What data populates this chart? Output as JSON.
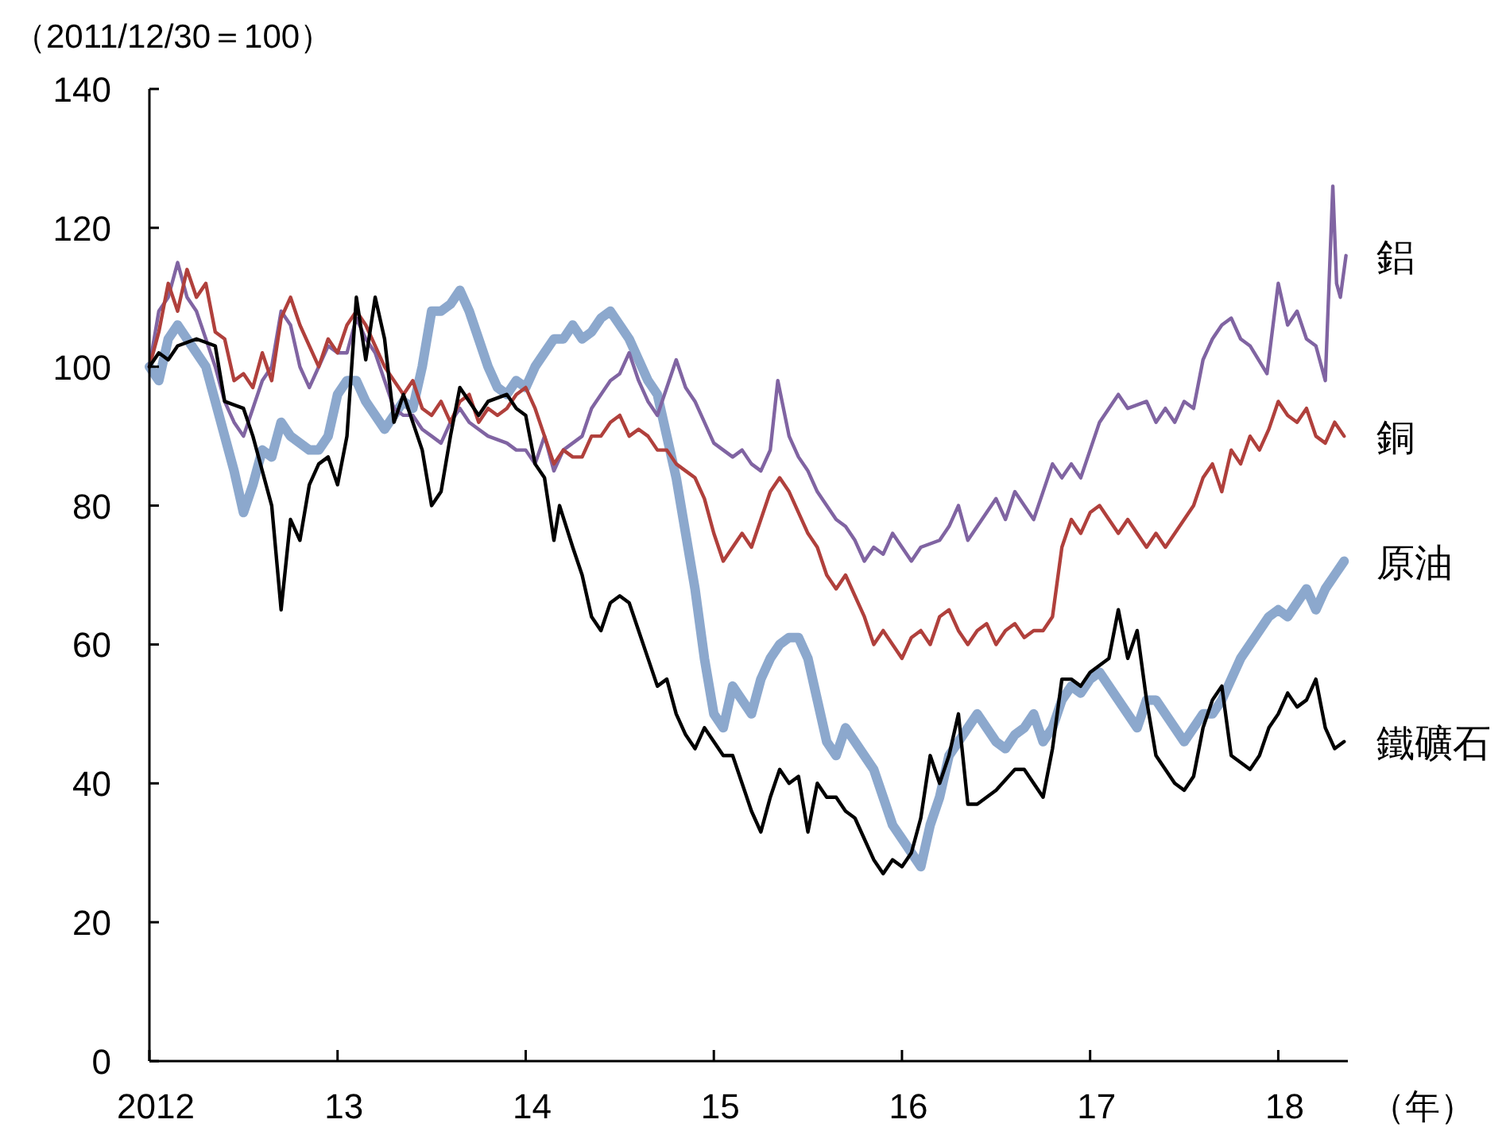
{
  "chart_data": {
    "type": "line",
    "ylabel": "（2011/12/30＝100）",
    "xlabel": "（年）",
    "xlim": [
      2012,
      2018.37
    ],
    "ylim": [
      0,
      140
    ],
    "xticks": [
      {
        "value": 2012,
        "label": "2012"
      },
      {
        "value": 2013,
        "label": "13"
      },
      {
        "value": 2014,
        "label": "14"
      },
      {
        "value": 2015,
        "label": "15"
      },
      {
        "value": 2016,
        "label": "16"
      },
      {
        "value": 2017,
        "label": "17"
      },
      {
        "value": 2018,
        "label": "18"
      }
    ],
    "yticks": [
      0,
      20,
      40,
      60,
      80,
      100,
      120,
      140
    ],
    "grid": false,
    "marker": "none",
    "line_style": "solid",
    "x": [
      2012,
      2012.05,
      2012.1,
      2012.15,
      2012.2,
      2012.25,
      2012.3,
      2012.35,
      2012.4,
      2012.45,
      2012.5,
      2012.55,
      2012.6,
      2012.65,
      2012.7,
      2012.75,
      2012.8,
      2012.85,
      2012.9,
      2012.95,
      2013,
      2013.05,
      2013.1,
      2013.15,
      2013.2,
      2013.25,
      2013.3,
      2013.35,
      2013.4,
      2013.45,
      2013.5,
      2013.55,
      2013.6,
      2013.65,
      2013.7,
      2013.75,
      2013.8,
      2013.85,
      2013.9,
      2013.95,
      2014,
      2014.05,
      2014.1,
      2014.15,
      2014.2,
      2014.25,
      2014.3,
      2014.35,
      2014.4,
      2014.45,
      2014.5,
      2014.55,
      2014.6,
      2014.65,
      2014.7,
      2014.75,
      2014.8,
      2014.85,
      2014.9,
      2014.95,
      2015,
      2015.05,
      2015.1,
      2015.15,
      2015.2,
      2015.25,
      2015.3,
      2015.35,
      2015.4,
      2015.45,
      2015.5,
      2015.55,
      2015.6,
      2015.65,
      2015.7,
      2015.75,
      2015.8,
      2015.85,
      2015.9,
      2015.95,
      2016,
      2016.05,
      2016.1,
      2016.15,
      2016.2,
      2016.25,
      2016.3,
      2016.35,
      2016.4,
      2016.45,
      2016.5,
      2016.55,
      2016.6,
      2016.65,
      2016.7,
      2016.75,
      2016.8,
      2016.85,
      2016.9,
      2016.95,
      2017,
      2017.05,
      2017.1,
      2017.15,
      2017.2,
      2017.25,
      2017.3,
      2017.35,
      2017.4,
      2017.45,
      2017.5,
      2017.55,
      2017.6,
      2017.65,
      2017.7,
      2017.75,
      2017.8,
      2017.85,
      2017.9,
      2017.95,
      2018,
      2018.05,
      2018.1,
      2018.15,
      2018.2,
      2018.25,
      2018.3,
      2018.35
    ],
    "series": [
      {
        "name": "鋁",
        "color": "#8064a2",
        "x": [
          2012,
          2012.05,
          2012.1,
          2012.15,
          2012.2,
          2012.25,
          2012.3,
          2012.35,
          2012.4,
          2012.45,
          2012.5,
          2012.55,
          2012.6,
          2012.65,
          2012.7,
          2012.75,
          2012.8,
          2012.85,
          2012.9,
          2012.95,
          2013,
          2013.05,
          2013.1,
          2013.15,
          2013.2,
          2013.25,
          2013.3,
          2013.35,
          2013.4,
          2013.45,
          2013.5,
          2013.55,
          2013.6,
          2013.65,
          2013.7,
          2013.75,
          2013.8,
          2013.9,
          2013.95,
          2014,
          2014.05,
          2014.1,
          2014.15,
          2014.2,
          2014.3,
          2014.35,
          2014.4,
          2014.45,
          2014.5,
          2014.55,
          2014.6,
          2014.65,
          2014.7,
          2014.75,
          2014.8,
          2014.85,
          2014.9,
          2014.95,
          2015,
          2015.05,
          2015.1,
          2015.15,
          2015.2,
          2015.25,
          2015.3,
          2015.34,
          2015.4,
          2015.45,
          2015.5,
          2015.55,
          2015.6,
          2015.65,
          2015.7,
          2015.75,
          2015.8,
          2015.85,
          2015.9,
          2015.95,
          2016,
          2016.05,
          2016.1,
          2016.2,
          2016.25,
          2016.3,
          2016.35,
          2016.4,
          2016.45,
          2016.5,
          2016.55,
          2016.6,
          2016.7,
          2016.75,
          2016.8,
          2016.85,
          2016.9,
          2016.95,
          2017,
          2017.05,
          2017.1,
          2017.15,
          2017.2,
          2017.3,
          2017.35,
          2017.4,
          2017.45,
          2017.5,
          2017.55,
          2017.6,
          2017.65,
          2017.7,
          2017.75,
          2017.8,
          2017.85,
          2017.94,
          2018,
          2018.05,
          2018.1,
          2018.15,
          2018.2,
          2018.25,
          2018.29,
          2018.31,
          2018.33,
          2018.36
        ],
        "values": [
          100,
          108,
          110,
          115,
          110,
          108,
          104,
          100,
          95,
          92,
          90,
          94,
          98,
          100,
          108,
          106,
          100,
          97,
          100,
          103,
          102,
          102,
          107,
          104,
          102,
          98,
          94,
          93,
          93,
          91,
          90,
          89,
          92,
          94,
          92,
          91,
          90,
          89,
          88,
          88,
          86,
          90,
          85,
          88,
          90,
          94,
          96,
          98,
          99,
          102,
          98,
          95,
          93,
          97,
          101,
          97,
          95,
          92,
          89,
          88,
          87,
          88,
          86,
          85,
          88,
          98,
          90,
          87,
          85,
          82,
          80,
          78,
          77,
          75,
          72,
          74,
          73,
          76,
          74,
          72,
          74,
          75,
          77,
          80,
          75,
          77,
          79,
          81,
          78,
          82,
          78,
          82,
          86,
          84,
          86,
          84,
          88,
          92,
          94,
          96,
          94,
          95,
          92,
          94,
          92,
          95,
          94,
          101,
          104,
          106,
          107,
          104,
          103,
          99,
          112,
          106,
          108,
          104,
          103,
          98,
          126,
          112,
          110,
          116
        ]
      },
      {
        "name": "銅",
        "color": "#b0403c",
        "values": [
          100,
          105,
          112,
          108,
          114,
          110,
          112,
          105,
          104,
          98,
          99,
          97,
          102,
          98,
          107,
          110,
          106,
          103,
          100,
          104,
          102,
          106,
          108,
          106,
          103,
          100,
          98,
          96,
          98,
          94,
          93,
          95,
          92,
          95,
          96,
          92,
          94,
          93,
          94,
          96,
          97,
          94,
          90,
          86,
          88,
          87,
          87,
          90,
          90,
          92,
          93,
          90,
          91,
          90,
          88,
          88,
          86,
          85,
          84,
          81,
          76,
          72,
          74,
          76,
          74,
          78,
          82,
          84,
          82,
          79,
          76,
          74,
          70,
          68,
          70,
          67,
          64,
          60,
          62,
          60,
          58,
          61,
          62,
          60,
          64,
          65,
          62,
          60,
          62,
          63,
          60,
          62,
          63,
          61,
          62,
          62,
          64,
          74,
          78,
          76,
          79,
          80,
          78,
          76,
          78,
          76,
          74,
          76,
          74,
          76,
          78,
          80,
          84,
          86,
          82,
          88,
          86,
          90,
          88,
          91,
          95,
          93,
          92,
          94,
          90,
          89,
          92,
          90
        ]
      },
      {
        "name": "原油",
        "color": "#7f9fc8",
        "values": [
          100,
          98,
          104,
          106,
          104,
          102,
          100,
          95,
          90,
          85,
          79,
          83,
          88,
          87,
          92,
          90,
          89,
          88,
          88,
          90,
          96,
          98,
          98,
          95,
          93,
          91,
          93,
          95,
          94,
          100,
          108,
          108,
          109,
          111,
          108,
          104,
          100,
          97,
          96,
          98,
          97,
          100,
          102,
          104,
          104,
          106,
          104,
          105,
          107,
          108,
          106,
          104,
          101,
          98,
          96,
          90,
          84,
          76,
          68,
          58,
          50,
          48,
          54,
          52,
          50,
          55,
          58,
          60,
          61,
          61,
          58,
          52,
          46,
          44,
          48,
          46,
          44,
          42,
          38,
          34,
          32,
          30,
          28,
          34,
          38,
          44,
          46,
          48,
          50,
          48,
          46,
          45,
          47,
          48,
          50,
          46,
          48,
          52,
          54,
          53,
          55,
          56,
          54,
          52,
          50,
          48,
          52,
          52,
          50,
          48,
          46,
          48,
          50,
          50,
          52,
          55,
          58,
          60,
          62,
          64,
          65,
          64,
          66,
          68,
          65,
          68,
          70,
          72
        ]
      },
      {
        "name": "鐵礦石",
        "color": "#000000",
        "x": [
          2012,
          2012.05,
          2012.1,
          2012.15,
          2012.25,
          2012.35,
          2012.4,
          2012.5,
          2012.55,
          2012.6,
          2012.65,
          2012.7,
          2012.75,
          2012.8,
          2012.85,
          2012.9,
          2012.95,
          2013,
          2013.05,
          2013.1,
          2013.15,
          2013.2,
          2013.25,
          2013.3,
          2013.35,
          2013.4,
          2013.45,
          2013.5,
          2013.55,
          2013.6,
          2013.65,
          2013.7,
          2013.75,
          2013.8,
          2013.9,
          2013.95,
          2014,
          2014.05,
          2014.1,
          2014.15,
          2014.18,
          2014.25,
          2014.3,
          2014.35,
          2014.4,
          2014.45,
          2014.5,
          2014.55,
          2014.6,
          2014.65,
          2014.7,
          2014.75,
          2014.8,
          2014.85,
          2014.9,
          2014.95,
          2015,
          2015.05,
          2015.1,
          2015.15,
          2015.2,
          2015.25,
          2015.3,
          2015.35,
          2015.4,
          2015.45,
          2015.5,
          2015.55,
          2015.6,
          2015.65,
          2015.7,
          2015.75,
          2015.8,
          2015.85,
          2015.9,
          2015.95,
          2016,
          2016.05,
          2016.1,
          2016.15,
          2016.2,
          2016.25,
          2016.3,
          2016.35,
          2016.4,
          2016.5,
          2016.6,
          2016.65,
          2016.7,
          2016.75,
          2016.8,
          2016.85,
          2016.9,
          2016.95,
          2017,
          2017.05,
          2017.1,
          2017.15,
          2017.2,
          2017.25,
          2017.3,
          2017.35,
          2017.4,
          2017.45,
          2017.5,
          2017.55,
          2017.6,
          2017.65,
          2017.7,
          2017.75,
          2017.8,
          2017.85,
          2017.9,
          2017.95,
          2018,
          2018.05,
          2018.1,
          2018.15,
          2018.2,
          2018.25,
          2018.3,
          2018.35
        ],
        "values": [
          100,
          102,
          101,
          103,
          104,
          103,
          95,
          94,
          90,
          85,
          80,
          65,
          78,
          75,
          83,
          86,
          87,
          83,
          90,
          110,
          101,
          110,
          104,
          92,
          96,
          92,
          88,
          80,
          82,
          90,
          97,
          95,
          93,
          95,
          96,
          94,
          93,
          86,
          84,
          75,
          80,
          74,
          70,
          64,
          62,
          66,
          67,
          66,
          62,
          58,
          54,
          55,
          50,
          47,
          45,
          48,
          46,
          44,
          44,
          40,
          36,
          33,
          38,
          42,
          40,
          41,
          33,
          40,
          38,
          38,
          36,
          35,
          32,
          29,
          27,
          29,
          28,
          30,
          35,
          44,
          40,
          44,
          50,
          37,
          37,
          39,
          42,
          42,
          40,
          38,
          45,
          55,
          55,
          54,
          56,
          57,
          58,
          65,
          58,
          62,
          52,
          44,
          42,
          40,
          39,
          41,
          48,
          52,
          54,
          44,
          43,
          42,
          44,
          48,
          50,
          53,
          51,
          52,
          55,
          48,
          45,
          46
        ]
      }
    ]
  }
}
